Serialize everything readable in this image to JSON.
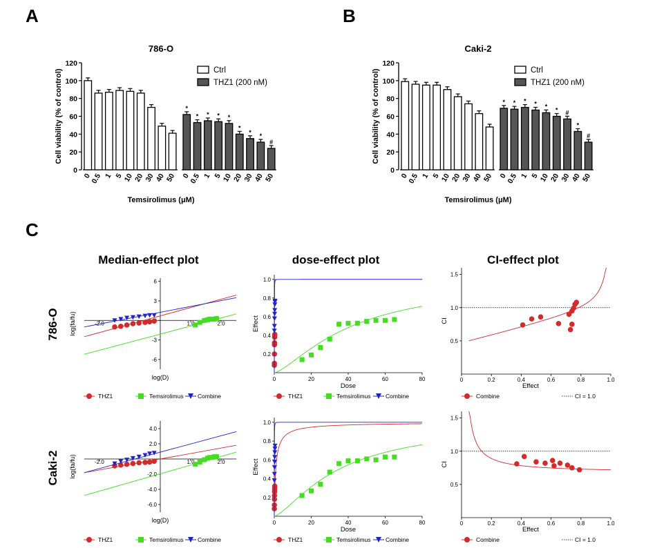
{
  "panel_letters": {
    "a": "A",
    "b": "B",
    "c": "C"
  },
  "row_labels": {
    "r1": "786-O",
    "r2": "Caki-2"
  },
  "panel_titles": {
    "median": "Median-effect plot",
    "dose": "dose-effect plot",
    "ci": "CI-effect plot"
  },
  "colors": {
    "thz1": "#d42a2a",
    "tem": "#44dd22",
    "comb": "#2222cc",
    "bar_ctrl": "#ffffff",
    "bar_thz1": "#555555"
  },
  "legends": {
    "thz1": "THZ1",
    "tem": "Temsirolimus",
    "comb": "Combine",
    "ctrl": "Ctrl",
    "thz1_200": "THZ1 (200 nM)",
    "ci_line": "CI = 1.0"
  },
  "axis_text": {
    "temsirolimus": "Temsirolimus (",
    "mu": "μ",
    "M": "M)",
    "cell_viability": "Cell viability (% of control)",
    "logD": "log(D)",
    "logfafu": "log(fa/fu)",
    "effect": "Effect",
    "dose": "Dose",
    "ci": "CI"
  },
  "chart_data": [
    {
      "type": "bar",
      "title": "786-O",
      "xlabel": "Temsirolimus (μM)",
      "ylabel": "Cell viability (% of control)",
      "ylim": [
        0,
        120
      ],
      "yticks": [
        "0",
        "20",
        "40",
        "60",
        "80",
        "100",
        "120"
      ],
      "legend": "top-right",
      "categories": [
        "0",
        "0.5",
        "1",
        "5",
        "10",
        "20",
        "30",
        "40",
        "50"
      ],
      "series": [
        {
          "name": "Ctrl",
          "values": [
            100,
            86,
            87,
            89,
            88,
            86,
            70,
            49,
            41
          ],
          "markers": [
            "",
            "",
            "",
            "",
            "",
            "",
            "",
            "",
            ""
          ]
        },
        {
          "name": "THZ1 (200 nM)",
          "values": [
            62,
            53,
            55,
            54,
            52,
            40,
            35,
            31,
            24
          ],
          "markers": [
            "*",
            "*",
            "*",
            "*",
            "*",
            "*",
            "*",
            "*",
            "#"
          ]
        }
      ]
    },
    {
      "type": "bar",
      "title": "Caki-2",
      "xlabel": "Temsirolimus (μM)",
      "ylabel": "Cell viability (% of control)",
      "ylim": [
        0,
        120
      ],
      "yticks": [
        "0",
        "20",
        "40",
        "60",
        "80",
        "100",
        "120"
      ],
      "legend": "top-right",
      "categories": [
        "0",
        "0.5",
        "1",
        "5",
        "10",
        "20",
        "30",
        "40",
        "50"
      ],
      "series": [
        {
          "name": "Ctrl",
          "values": [
            99,
            96,
            95,
            95,
            90,
            82,
            74,
            63,
            48
          ],
          "markers": [
            "",
            "",
            "",
            "",
            "",
            "",
            "",
            "",
            ""
          ]
        },
        {
          "name": "THZ1 (200 nM)",
          "values": [
            69,
            68,
            70,
            67,
            64,
            60,
            57,
            43,
            31
          ],
          "markers": [
            "*",
            "*",
            "*",
            "*",
            "*",
            "*",
            "#",
            "*",
            "#"
          ]
        }
      ]
    },
    {
      "type": "scatter",
      "title": "Median-effect plot",
      "row": "786-O",
      "xlabel": "log(D)",
      "ylabel": "log(fa/fu)",
      "xlim": [
        -2.5,
        2.5
      ],
      "ylim": [
        -7.5,
        6.5
      ],
      "xticks": [
        "-2.0",
        "1.0",
        "2.0"
      ],
      "yticks": [
        "6",
        "3",
        "0",
        "-3",
        "-6"
      ],
      "series": [
        {
          "name": "THZ1",
          "x": [
            -1.5,
            -1.3,
            -1.1,
            -0.9,
            -0.7,
            -0.5,
            -0.35,
            -0.2
          ],
          "y": [
            -1.0,
            -0.9,
            -0.7,
            -0.5,
            -0.4,
            -0.3,
            -0.2,
            -0.1
          ],
          "line": [
            [
              -2.5,
              -2.5
            ],
            [
              2.5,
              3.9
            ]
          ]
        },
        {
          "name": "Temsirolimus",
          "x": [
            1.15,
            1.3,
            1.45,
            1.55,
            1.62,
            1.7,
            1.78,
            1.85
          ],
          "y": [
            -0.7,
            -0.3,
            0.0,
            0.1,
            0.2,
            0.2,
            0.2,
            0.3
          ],
          "line": [
            [
              -2.5,
              -5.2
            ],
            [
              2.5,
              1.0
            ]
          ]
        },
        {
          "name": "Combine",
          "x": [
            -1.5,
            -1.3,
            -1.1,
            -0.9,
            -0.7,
            -0.5,
            -0.35,
            -0.2
          ],
          "y": [
            0.0,
            0.2,
            0.4,
            0.5,
            0.6,
            0.7,
            0.8,
            0.8
          ],
          "line": [
            [
              -2.5,
              -1.0
            ],
            [
              2.5,
              3.5
            ]
          ]
        }
      ]
    },
    {
      "type": "line",
      "title": "dose-effect plot",
      "row": "786-O",
      "xlabel": "Dose",
      "ylabel": "Effect",
      "xlim": [
        0,
        80
      ],
      "ylim": [
        0,
        1.05
      ],
      "xticks": [
        "0",
        "20",
        "40",
        "60",
        "80"
      ],
      "yticks": [
        "0.2",
        "0.4",
        "0.6",
        "0.8",
        "1.0"
      ],
      "series": [
        {
          "name": "THZ1",
          "x": [
            0.03,
            0.05,
            0.08,
            0.1,
            0.13,
            0.16,
            0.2,
            0.25
          ],
          "y": [
            0.08,
            0.1,
            0.2,
            0.3,
            0.32,
            0.38,
            0.4,
            0.41
          ],
          "dmax": 1.3,
          "dm": 0.1,
          "m": 3.5
        },
        {
          "name": "Temsirolimus",
          "x": [
            15,
            20,
            25,
            30,
            35,
            40,
            45,
            50,
            55,
            60,
            65
          ],
          "y": [
            0.14,
            0.19,
            0.27,
            0.36,
            0.52,
            0.53,
            0.53,
            0.55,
            0.56,
            0.56,
            0.57
          ],
          "dmax": 80,
          "dm": 42,
          "m": 1.4
        },
        {
          "name": "Combine",
          "x": [
            0.05,
            0.1,
            0.15,
            0.2,
            0.25,
            0.3,
            0.35,
            0.4
          ],
          "y": [
            0.45,
            0.5,
            0.58,
            0.63,
            0.67,
            0.73,
            0.76,
            0.77
          ],
          "dmax": 80,
          "dm": 0.05,
          "m": 1.9
        }
      ]
    },
    {
      "type": "scatter",
      "title": "CI-effect plot",
      "row": "786-O",
      "xlabel": "Effect",
      "ylabel": "CI",
      "xlim": [
        0,
        1.0
      ],
      "ylim": [
        0,
        1.6
      ],
      "xticks": [
        "0",
        "0.2",
        "0.4",
        "0.6",
        "0.8",
        "1.0"
      ],
      "yticks": [
        "0.5",
        "1.0",
        "1.5"
      ],
      "reference_line": 1.0,
      "series": [
        {
          "name": "Combine",
          "x": [
            0.41,
            0.47,
            0.53,
            0.65,
            0.72,
            0.73,
            0.74,
            0.74,
            0.75,
            0.76,
            0.77
          ],
          "y": [
            0.74,
            0.83,
            0.86,
            0.76,
            0.9,
            0.67,
            0.95,
            0.75,
            0.99,
            1.05,
            1.08
          ],
          "curve": "up"
        }
      ]
    },
    {
      "type": "scatter",
      "title": "Median-effect plot",
      "row": "Caki-2",
      "xlabel": "log(D)",
      "ylabel": "log(fa/fu)",
      "xlim": [
        -2.5,
        2.5
      ],
      "ylim": [
        -7.0,
        5.0
      ],
      "xticks": [
        "-2.0",
        "1.0",
        "2.0"
      ],
      "yticks": [
        "4.0",
        "2.0",
        "-2.0",
        "-4.0",
        "-6.0"
      ],
      "series": [
        {
          "name": "THZ1",
          "x": [
            -1.5,
            -1.3,
            -1.1,
            -0.9,
            -0.7,
            -0.5,
            -0.35,
            -0.2
          ],
          "y": [
            -0.9,
            -0.8,
            -0.7,
            -0.6,
            -0.5,
            -0.45,
            -0.4,
            -0.3
          ],
          "line": [
            [
              -2.5,
              -1.8
            ],
            [
              2.5,
              1.8
            ]
          ]
        },
        {
          "name": "Temsirolimus",
          "x": [
            1.15,
            1.3,
            1.45,
            1.55,
            1.62,
            1.7,
            1.78,
            1.85
          ],
          "y": [
            -0.7,
            -0.4,
            -0.1,
            0.1,
            0.2,
            0.2,
            0.3,
            0.3
          ],
          "line": [
            [
              -2.5,
              -4.8
            ],
            [
              2.5,
              0.9
            ]
          ]
        },
        {
          "name": "Combine",
          "x": [
            -1.5,
            -1.3,
            -1.1,
            -0.9,
            -0.7,
            -0.5,
            -0.35,
            -0.2
          ],
          "y": [
            -0.6,
            -0.3,
            -0.1,
            0.1,
            0.3,
            0.5,
            0.7,
            0.8
          ],
          "line": [
            [
              -2.5,
              -1.8
            ],
            [
              2.5,
              3.6
            ]
          ]
        }
      ]
    },
    {
      "type": "line",
      "title": "dose-effect plot",
      "row": "Caki-2",
      "xlabel": "Dose",
      "ylabel": "Effect",
      "xlim": [
        0,
        80
      ],
      "ylim": [
        0,
        1.05
      ],
      "xticks": [
        "0",
        "20",
        "40",
        "60",
        "80"
      ],
      "yticks": [
        "0.2",
        "0.4",
        "0.6",
        "0.8",
        "1.0"
      ],
      "series": [
        {
          "name": "THZ1",
          "x": [
            0.03,
            0.05,
            0.08,
            0.1,
            0.13,
            0.16,
            0.2,
            0.25
          ],
          "y": [
            0.08,
            0.12,
            0.18,
            0.22,
            0.26,
            0.28,
            0.3,
            0.32
          ],
          "dmax": 80,
          "dm": 0.8,
          "m": 0.9
        },
        {
          "name": "Temsirolimus",
          "x": [
            15,
            20,
            25,
            30,
            35,
            40,
            45,
            50,
            55,
            60,
            65
          ],
          "y": [
            0.22,
            0.27,
            0.34,
            0.47,
            0.56,
            0.59,
            0.59,
            0.61,
            0.6,
            0.63,
            0.63
          ],
          "dmax": 80,
          "dm": 35,
          "m": 1.4
        },
        {
          "name": "Combine",
          "x": [
            0.05,
            0.1,
            0.15,
            0.2,
            0.25,
            0.3,
            0.35,
            0.4
          ],
          "y": [
            0.38,
            0.45,
            0.52,
            0.58,
            0.63,
            0.68,
            0.72,
            0.75
          ],
          "dmax": 80,
          "dm": 0.05,
          "m": 1.9
        }
      ]
    },
    {
      "type": "scatter",
      "title": "CI-effect plot",
      "row": "Caki-2",
      "xlabel": "Effect",
      "ylabel": "CI",
      "xlim": [
        0,
        1.0
      ],
      "ylim": [
        0,
        1.6
      ],
      "xticks": [
        "0",
        "0.2",
        "0.4",
        "0.6",
        "0.8",
        "1.0"
      ],
      "yticks": [
        "0.5",
        "1.0",
        "1.5"
      ],
      "reference_line": 1.0,
      "series": [
        {
          "name": "Combine",
          "x": [
            0.37,
            0.42,
            0.5,
            0.56,
            0.61,
            0.62,
            0.66,
            0.71,
            0.74,
            0.79
          ],
          "y": [
            0.81,
            0.92,
            0.84,
            0.82,
            0.86,
            0.78,
            0.82,
            0.79,
            0.75,
            0.72
          ],
          "curve": "down"
        }
      ]
    }
  ]
}
